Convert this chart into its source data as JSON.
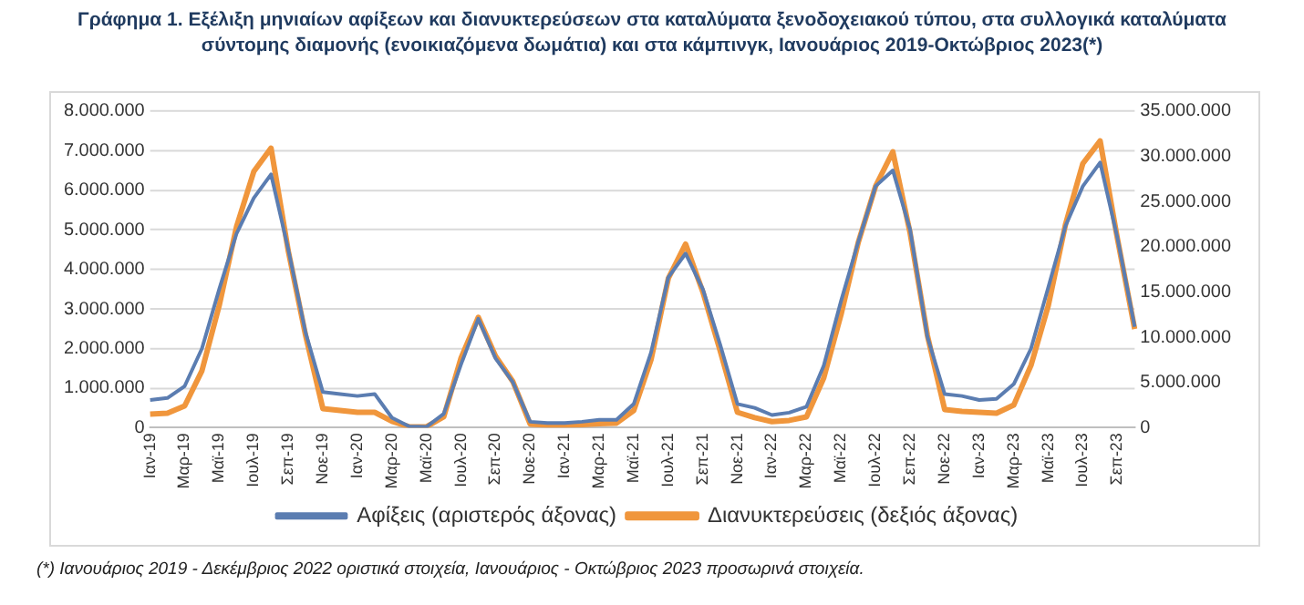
{
  "chart_data": {
    "type": "line",
    "title": "Γράφημα 1. Εξέλιξη μηνιαίων αφίξεων και διανυκτερεύσεων στα καταλύματα ξενοδοχειακού τύπου, στα συλλογικά καταλύματα σύντομης διαμονής (ενοικιαζόμενα δωμάτια) και στα κάμπινγκ, Ιανουάριος 2019-Οκτώβριος 2023(*)",
    "annotations": [
      "(*) Ιανουάριος 2019 - Δεκέμβριος 2022 οριστικά στοιχεία, Ιανουάριος - Οκτώβριος 2023 προσωρινά στοιχεία."
    ],
    "categories": [
      "Ιαν-19",
      null,
      "Μαρ-19",
      null,
      "Μαϊ-19",
      null,
      "Ιουλ-19",
      null,
      "Σεπ-19",
      null,
      "Νοε-19",
      null,
      "Ιαν-20",
      null,
      "Μαρ-20",
      null,
      "Μαϊ-20",
      null,
      "Ιουλ-20",
      null,
      "Σεπ-20",
      null,
      "Νοε-20",
      null,
      "Ιαν-21",
      null,
      "Μαρ-21",
      null,
      "Μαϊ-21",
      null,
      "Ιουλ-21",
      null,
      "Σεπ-21",
      null,
      "Νοε-21",
      null,
      "Ιαν-22",
      null,
      "Μαρ-22",
      null,
      "Μαϊ-22",
      null,
      "Ιουλ-22",
      null,
      "Σεπ-22",
      null,
      "Νοε-22",
      null,
      "Ιαν-23",
      null,
      "Μαρ-23",
      null,
      "Μαϊ-23",
      null,
      "Ιουλ-23",
      null,
      "Σεπ-23",
      null
    ],
    "series": [
      {
        "name": "Αφίξεις (αριστερός άξονας)",
        "color": "#5b7db1",
        "values": [
          700000,
          750000,
          1050000,
          2000000,
          3500000,
          4900000,
          5800000,
          6400000,
          4500000,
          2400000,
          900000,
          850000,
          800000,
          850000,
          250000,
          30000,
          20000,
          350000,
          1600000,
          2750000,
          1750000,
          1150000,
          150000,
          120000,
          120000,
          150000,
          200000,
          200000,
          600000,
          1900000,
          3800000,
          4400000,
          3500000,
          2100000,
          600000,
          500000,
          320000,
          380000,
          530000,
          1570000,
          3200000,
          4700000,
          6100000,
          6500000,
          5000000,
          2300000,
          850000,
          800000,
          700000,
          730000,
          1100000,
          2000000,
          3550000,
          5100000,
          6100000,
          6700000,
          4800000,
          2550000
        ]
      },
      {
        "name": "Διανυκτερεύσεις (δεξιός άξονας)",
        "color": "#f0963c",
        "axis": "y2",
        "values": [
          1500000,
          1600000,
          2400000,
          6300000,
          13500000,
          22200000,
          28300000,
          30900000,
          19500000,
          10200000,
          2100000,
          1900000,
          1700000,
          1700000,
          700000,
          100000,
          100000,
          1200000,
          7700000,
          12200000,
          7900000,
          5100000,
          400000,
          300000,
          300000,
          350000,
          450000,
          500000,
          1900000,
          7500000,
          16500000,
          20300000,
          15000000,
          8500000,
          1700000,
          1100000,
          670000,
          800000,
          1200000,
          5500000,
          12500000,
          20500000,
          26700000,
          30500000,
          21500000,
          10200000,
          2000000,
          1800000,
          1700000,
          1600000,
          2500000,
          6900000,
          13500000,
          22500000,
          29200000,
          31700000,
          20900000,
          10900000
        ]
      }
    ],
    "ylim": [
      0,
      8000000
    ],
    "yticks": [
      {
        "value": 0,
        "label": "0"
      },
      {
        "value": 1000000,
        "label": "1.000.000"
      },
      {
        "value": 2000000,
        "label": "2.000.000"
      },
      {
        "value": 3000000,
        "label": "3.000.000"
      },
      {
        "value": 4000000,
        "label": "4.000.000"
      },
      {
        "value": 5000000,
        "label": "5.000.000"
      },
      {
        "value": 6000000,
        "label": "6.000.000"
      },
      {
        "value": 7000000,
        "label": "7.000.000"
      },
      {
        "value": 8000000,
        "label": "8.000.000"
      }
    ],
    "y2lim": [
      0,
      35000000
    ],
    "y2ticks": [
      {
        "value": 0,
        "label": "0"
      },
      {
        "value": 5000000,
        "label": "5.000.000"
      },
      {
        "value": 10000000,
        "label": "10.000.000"
      },
      {
        "value": 15000000,
        "label": "15.000.000"
      },
      {
        "value": 20000000,
        "label": "20.000.000"
      },
      {
        "value": 25000000,
        "label": "25.000.000"
      },
      {
        "value": 30000000,
        "label": "30.000.000"
      },
      {
        "value": 35000000,
        "label": "35.000.000"
      }
    ],
    "grid": "y",
    "legend": "bottom",
    "marker": "none",
    "line_style": "solid"
  }
}
